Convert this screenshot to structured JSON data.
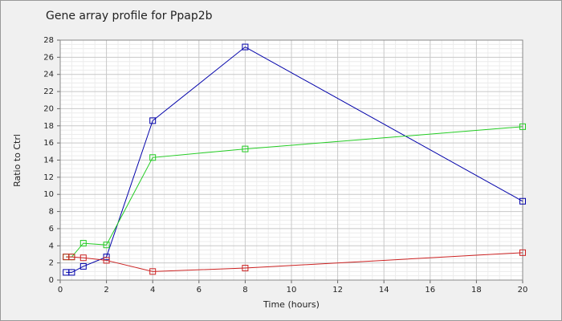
{
  "chart_data": {
    "type": "line",
    "title": "Gene array profile for Ppap2b",
    "x_label": "Time (hours)",
    "y_label": "Ratio to Ctrl",
    "x": [
      0.25,
      0.5,
      1,
      2,
      4,
      8,
      20
    ],
    "series": [
      {
        "color": "#0000aa",
        "values": [
          0.9,
          0.9,
          1.6,
          2.7,
          18.6,
          27.2,
          9.2
        ]
      },
      {
        "color": "#22cc22",
        "values": [
          2.7,
          2.7,
          4.3,
          4.1,
          14.3,
          15.3,
          17.9
        ]
      },
      {
        "color": "#cc2222",
        "values": [
          2.7,
          2.7,
          2.6,
          2.3,
          1.0,
          1.4,
          3.2
        ]
      }
    ],
    "xlim": [
      0,
      20
    ],
    "xticks": [
      0,
      2,
      4,
      6,
      8,
      10,
      12,
      14,
      16,
      18,
      20
    ],
    "ylim": [
      0,
      28
    ],
    "yticks": [
      0,
      2,
      4,
      6,
      8,
      10,
      12,
      14,
      16,
      18,
      20,
      22,
      24,
      26,
      28
    ],
    "grid": true
  }
}
